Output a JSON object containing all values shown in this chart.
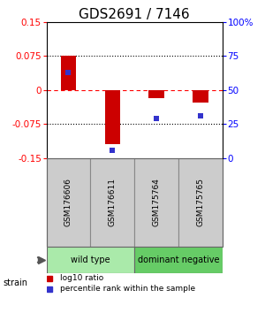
{
  "title": "GDS2691 / 7146",
  "samples": [
    "GSM176606",
    "GSM176611",
    "GSM175764",
    "GSM175765"
  ],
  "bar_values": [
    0.075,
    -0.12,
    -0.018,
    -0.028
  ],
  "percentile_ranks": [
    63,
    6,
    29,
    31
  ],
  "ylim": [
    -0.15,
    0.15
  ],
  "yticks_left": [
    -0.15,
    -0.075,
    0,
    0.075,
    0.15
  ],
  "ytick_labels_left": [
    "-0.15",
    "-0.075",
    "0",
    "0.075",
    "0.15"
  ],
  "right_tick_vals": [
    0,
    25,
    50,
    75,
    100
  ],
  "right_tick_labels": [
    "0",
    "25",
    "50",
    "75",
    "100%"
  ],
  "hlines_dotted": [
    0.075,
    -0.075
  ],
  "hline_dashed_color": "red",
  "bar_color": "#cc0000",
  "blue_color": "#3333cc",
  "group1_indices": [
    0,
    1
  ],
  "group1_label": "wild type",
  "group1_color": "#aaeaaa",
  "group2_indices": [
    2,
    3
  ],
  "group2_label": "dominant negative",
  "group2_color": "#66cc66",
  "strain_label": "strain",
  "legend_red": "log10 ratio",
  "legend_blue": "percentile rank within the sample",
  "bar_width": 0.35,
  "title_fontsize": 11,
  "tick_fontsize": 7.5,
  "label_fontsize": 6.5,
  "group_fontsize": 7
}
